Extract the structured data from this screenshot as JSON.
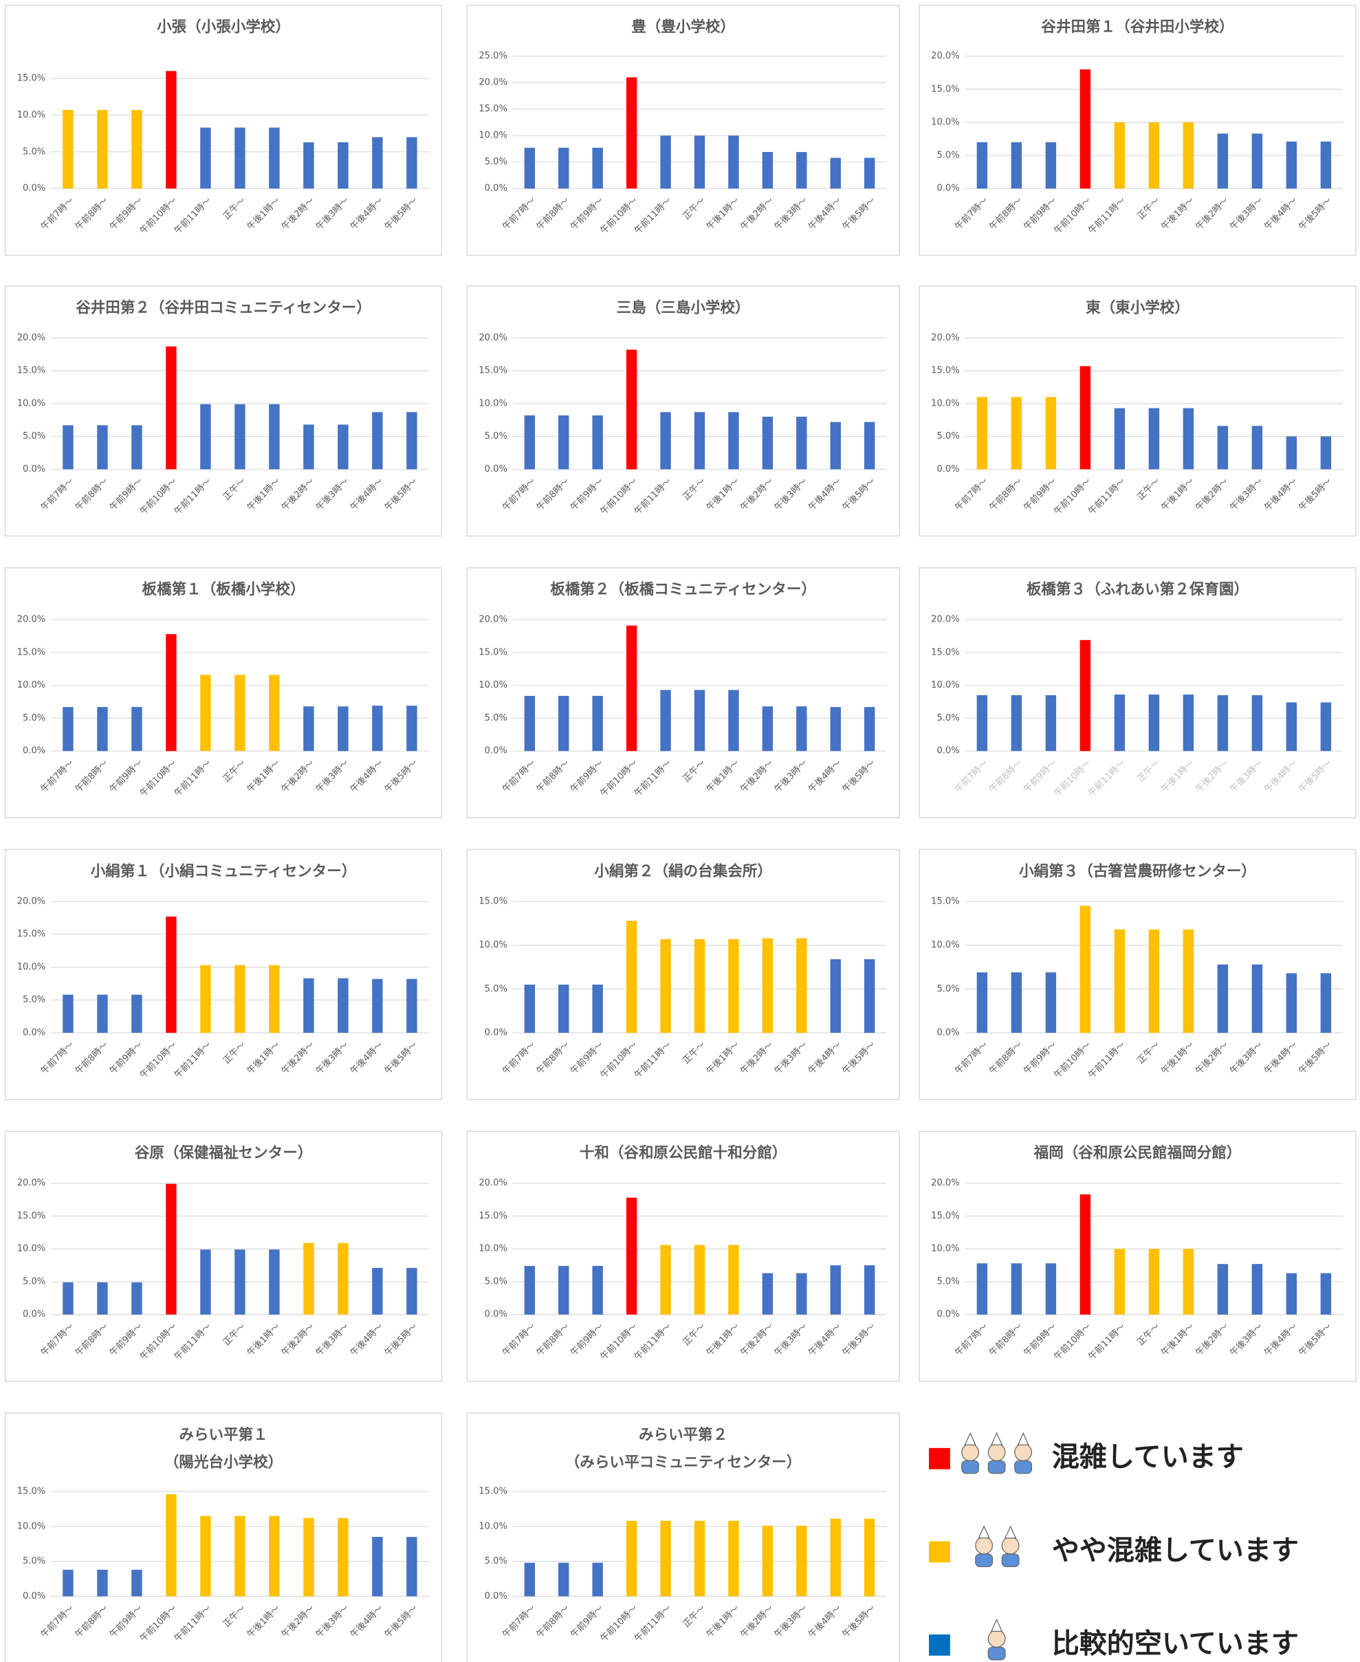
{
  "chart_data": [
    {
      "type": "bar",
      "title": "小張（小張小学校）",
      "categories": [
        "午前7時～",
        "午前8時～",
        "午前9時～",
        "午前10時～",
        "午前11時～",
        "正午～",
        "午後1時～",
        "午後2時～",
        "午後3時～",
        "午後4時～",
        "午後5時～"
      ],
      "values": [
        10.7,
        10.7,
        10.7,
        16.0,
        8.3,
        8.3,
        8.3,
        6.3,
        6.3,
        7.0,
        7.0
      ],
      "colors": [
        "#ffc000",
        "#ffc000",
        "#ffc000",
        "#ff0000",
        "#4472c4",
        "#4472c4",
        "#4472c4",
        "#4472c4",
        "#4472c4",
        "#4472c4",
        "#4472c4"
      ],
      "ylim": [
        0,
        15
      ],
      "yticks": [
        {
          "value": 0,
          "label": "0.0%"
        },
        {
          "value": 5,
          "label": "5.0%"
        },
        {
          "value": 10,
          "label": "10.0%"
        },
        {
          "value": 15,
          "label": "15.0%"
        }
      ],
      "grid": true
    },
    {
      "type": "bar",
      "title": "豊（豊小学校）",
      "categories": [
        "午前7時～",
        "午前8時～",
        "午前9時～",
        "午前10時～",
        "午前11時～",
        "正午～",
        "午後1時～",
        "午後2時～",
        "午後3時～",
        "午後4時～",
        "午後5時～"
      ],
      "values": [
        7.7,
        7.7,
        7.7,
        21.0,
        10.0,
        10.0,
        10.0,
        6.9,
        6.9,
        5.8,
        5.8
      ],
      "colors": [
        "#4472c4",
        "#4472c4",
        "#4472c4",
        "#ff0000",
        "#4472c4",
        "#4472c4",
        "#4472c4",
        "#4472c4",
        "#4472c4",
        "#4472c4",
        "#4472c4"
      ],
      "ylim": [
        0,
        25
      ],
      "yticks": [
        {
          "value": 0,
          "label": "0.0%"
        },
        {
          "value": 5,
          "label": "5.0%"
        },
        {
          "value": 10,
          "label": "10.0%"
        },
        {
          "value": 15,
          "label": "15.0%"
        },
        {
          "value": 20,
          "label": "20.0%"
        },
        {
          "value": 25,
          "label": "25.0%"
        }
      ],
      "grid": true
    },
    {
      "type": "bar",
      "title": "谷井田第１（谷井田小学校）",
      "categories": [
        "午前7時～",
        "午前8時～",
        "午前9時～",
        "午前10時～",
        "午前11時～",
        "正午～",
        "午後1時～",
        "午後2時～",
        "午後3時～",
        "午後4時～",
        "午後5時～"
      ],
      "values": [
        7.0,
        7.0,
        7.0,
        18.0,
        10.0,
        10.0,
        10.0,
        8.3,
        8.3,
        7.1,
        7.1
      ],
      "colors": [
        "#4472c4",
        "#4472c4",
        "#4472c4",
        "#ff0000",
        "#ffc000",
        "#ffc000",
        "#ffc000",
        "#4472c4",
        "#4472c4",
        "#4472c4",
        "#4472c4"
      ],
      "ylim": [
        0,
        20
      ],
      "yticks": [
        {
          "value": 0,
          "label": "0.0%"
        },
        {
          "value": 5,
          "label": "5.0%"
        },
        {
          "value": 10,
          "label": "10.0%"
        },
        {
          "value": 15,
          "label": "15.0%"
        },
        {
          "value": 20,
          "label": "20.0%"
        }
      ],
      "grid": true
    },
    {
      "type": "bar",
      "title": "谷井田第２（谷井田コミュニティセンター）",
      "categories": [
        "午前7時～",
        "午前8時～",
        "午前9時～",
        "午前10時～",
        "午前11時～",
        "正午～",
        "午後1時～",
        "午後2時～",
        "午後3時～",
        "午後4時～",
        "午後5時～"
      ],
      "values": [
        6.7,
        6.7,
        6.7,
        18.7,
        9.9,
        9.9,
        9.9,
        6.8,
        6.8,
        8.7,
        8.7
      ],
      "colors": [
        "#4472c4",
        "#4472c4",
        "#4472c4",
        "#ff0000",
        "#4472c4",
        "#4472c4",
        "#4472c4",
        "#4472c4",
        "#4472c4",
        "#4472c4",
        "#4472c4"
      ],
      "ylim": [
        0,
        20
      ],
      "yticks": [
        {
          "value": 0,
          "label": "0.0%"
        },
        {
          "value": 5,
          "label": "5.0%"
        },
        {
          "value": 10,
          "label": "10.0%"
        },
        {
          "value": 15,
          "label": "15.0%"
        },
        {
          "value": 20,
          "label": "20.0%"
        }
      ],
      "grid": true
    },
    {
      "type": "bar",
      "title": "三島（三島小学校）",
      "categories": [
        "午前7時～",
        "午前8時～",
        "午前9時～",
        "午前10時～",
        "午前11時～",
        "正午～",
        "午後1時～",
        "午後2時～",
        "午後3時～",
        "午後4時～",
        "午後5時～"
      ],
      "values": [
        8.2,
        8.2,
        8.2,
        18.2,
        8.7,
        8.7,
        8.7,
        8.0,
        8.0,
        7.2,
        7.2
      ],
      "colors": [
        "#4472c4",
        "#4472c4",
        "#4472c4",
        "#ff0000",
        "#4472c4",
        "#4472c4",
        "#4472c4",
        "#4472c4",
        "#4472c4",
        "#4472c4",
        "#4472c4"
      ],
      "ylim": [
        0,
        20
      ],
      "yticks": [
        {
          "value": 0,
          "label": "0.0%"
        },
        {
          "value": 5,
          "label": "5.0%"
        },
        {
          "value": 10,
          "label": "10.0%"
        },
        {
          "value": 15,
          "label": "15.0%"
        },
        {
          "value": 20,
          "label": "20.0%"
        }
      ],
      "grid": true
    },
    {
      "type": "bar",
      "title": "東（東小学校）",
      "categories": [
        "午前7時～",
        "午前8時～",
        "午前9時～",
        "午前10時～",
        "午前11時～",
        "正午～",
        "午後1時～",
        "午後2時～",
        "午後3時～",
        "午後4時～",
        "午後5時～"
      ],
      "values": [
        11.0,
        11.0,
        11.0,
        15.7,
        9.3,
        9.3,
        9.3,
        6.6,
        6.6,
        5.0,
        5.0
      ],
      "colors": [
        "#ffc000",
        "#ffc000",
        "#ffc000",
        "#ff0000",
        "#4472c4",
        "#4472c4",
        "#4472c4",
        "#4472c4",
        "#4472c4",
        "#4472c4",
        "#4472c4"
      ],
      "ylim": [
        0,
        20
      ],
      "yticks": [
        {
          "value": 0,
          "label": "0.0%"
        },
        {
          "value": 5,
          "label": "5.0%"
        },
        {
          "value": 10,
          "label": "10.0%"
        },
        {
          "value": 15,
          "label": "15.0%"
        },
        {
          "value": 20,
          "label": "20.0%"
        }
      ],
      "grid": true
    },
    {
      "type": "bar",
      "title": "板橋第１（板橋小学校）",
      "categories": [
        "午前7時～",
        "午前8時～",
        "午前9時～",
        "午前10時～",
        "午前11時～",
        "正午～",
        "午後1時～",
        "午後2時～",
        "午後3時～",
        "午後4時～",
        "午後5時～"
      ],
      "values": [
        6.7,
        6.7,
        6.7,
        17.8,
        11.6,
        11.6,
        11.6,
        6.8,
        6.8,
        6.9,
        6.9
      ],
      "colors": [
        "#4472c4",
        "#4472c4",
        "#4472c4",
        "#ff0000",
        "#ffc000",
        "#ffc000",
        "#ffc000",
        "#4472c4",
        "#4472c4",
        "#4472c4",
        "#4472c4"
      ],
      "ylim": [
        0,
        20
      ],
      "yticks": [
        {
          "value": 0,
          "label": "0.0%"
        },
        {
          "value": 5,
          "label": "5.0%"
        },
        {
          "value": 10,
          "label": "10.0%"
        },
        {
          "value": 15,
          "label": "15.0%"
        },
        {
          "value": 20,
          "label": "20.0%"
        }
      ],
      "grid": true
    },
    {
      "type": "bar",
      "title": "板橋第２（板橋コミュニティセンター）",
      "categories": [
        "午前7時～",
        "午前8時～",
        "午前9時～",
        "午前10時～",
        "午前11時～",
        "正午～",
        "午後1時～",
        "午後2時～",
        "午後3時～",
        "午後4時～",
        "午後5時～"
      ],
      "values": [
        8.4,
        8.4,
        8.4,
        19.1,
        9.3,
        9.3,
        9.3,
        6.8,
        6.8,
        6.7,
        6.7
      ],
      "colors": [
        "#4472c4",
        "#4472c4",
        "#4472c4",
        "#ff0000",
        "#4472c4",
        "#4472c4",
        "#4472c4",
        "#4472c4",
        "#4472c4",
        "#4472c4",
        "#4472c4"
      ],
      "ylim": [
        0,
        20
      ],
      "yticks": [
        {
          "value": 0,
          "label": "0.0%"
        },
        {
          "value": 5,
          "label": "5.0%"
        },
        {
          "value": 10,
          "label": "10.0%"
        },
        {
          "value": 15,
          "label": "15.0%"
        },
        {
          "value": 20,
          "label": "20.0%"
        }
      ],
      "grid": true
    },
    {
      "type": "bar",
      "title": "板橋第３（ふれあい第２保育園）",
      "categories": [
        "午前7時～",
        "午前8時～",
        "午前9時～",
        "午前10時～",
        "午前11時～",
        "正午～",
        "午後1時～",
        "午後2時～",
        "午後3時～",
        "午後4時～",
        "午後5時～"
      ],
      "values": [
        8.5,
        8.5,
        8.5,
        16.9,
        8.6,
        8.6,
        8.6,
        8.5,
        8.5,
        7.4,
        7.4
      ],
      "colors": [
        "#4472c4",
        "#4472c4",
        "#4472c4",
        "#ff0000",
        "#4472c4",
        "#4472c4",
        "#4472c4",
        "#4472c4",
        "#4472c4",
        "#4472c4",
        "#4472c4"
      ],
      "ylim": [
        0,
        20
      ],
      "yticks": [
        {
          "value": 0,
          "label": "0.0%"
        },
        {
          "value": 5,
          "label": "5.0%"
        },
        {
          "value": 10,
          "label": "10.0%"
        },
        {
          "value": 15,
          "label": "15.0%"
        },
        {
          "value": 20,
          "label": "20.0%"
        }
      ],
      "grid": true,
      "xlabel_color": "#bfbfbf"
    },
    {
      "type": "bar",
      "title": "小絹第１（小絹コミュニティセンター）",
      "categories": [
        "午前7時～",
        "午前8時～",
        "午前9時～",
        "午前10時～",
        "午前11時～",
        "正午～",
        "午後1時～",
        "午後2時～",
        "午後3時～",
        "午後4時～",
        "午後5時～"
      ],
      "values": [
        5.8,
        5.8,
        5.8,
        17.7,
        10.3,
        10.3,
        10.3,
        8.3,
        8.3,
        8.2,
        8.2
      ],
      "colors": [
        "#4472c4",
        "#4472c4",
        "#4472c4",
        "#ff0000",
        "#ffc000",
        "#ffc000",
        "#ffc000",
        "#4472c4",
        "#4472c4",
        "#4472c4",
        "#4472c4"
      ],
      "ylim": [
        0,
        20
      ],
      "yticks": [
        {
          "value": 0,
          "label": "0.0%"
        },
        {
          "value": 5,
          "label": "5.0%"
        },
        {
          "value": 10,
          "label": "10.0%"
        },
        {
          "value": 15,
          "label": "15.0%"
        },
        {
          "value": 20,
          "label": "20.0%"
        }
      ],
      "grid": true
    },
    {
      "type": "bar",
      "title": "小絹第２（絹の台集会所）",
      "categories": [
        "午前7時～",
        "午前8時～",
        "午前9時～",
        "午前10時～",
        "午前11時～",
        "正午～",
        "午後1時～",
        "午後2時～",
        "午後3時～",
        "午後4時～",
        "午後5時～"
      ],
      "values": [
        5.5,
        5.5,
        5.5,
        12.8,
        10.7,
        10.7,
        10.7,
        10.8,
        10.8,
        8.4,
        8.4
      ],
      "colors": [
        "#4472c4",
        "#4472c4",
        "#4472c4",
        "#ffc000",
        "#ffc000",
        "#ffc000",
        "#ffc000",
        "#ffc000",
        "#ffc000",
        "#4472c4",
        "#4472c4"
      ],
      "ylim": [
        0,
        15
      ],
      "yticks": [
        {
          "value": 0,
          "label": "0.0%"
        },
        {
          "value": 5,
          "label": "5.0%"
        },
        {
          "value": 10,
          "label": "10.0%"
        },
        {
          "value": 15,
          "label": "15.0%"
        }
      ],
      "grid": true
    },
    {
      "type": "bar",
      "title": "小絹第３（古箸営農研修センター）",
      "categories": [
        "午前7時～",
        "午前8時～",
        "午前9時～",
        "午前10時～",
        "午前11時～",
        "正午～",
        "午後1時～",
        "午後2時～",
        "午後3時～",
        "午後4時～",
        "午後5時～"
      ],
      "values": [
        6.9,
        6.9,
        6.9,
        14.5,
        11.8,
        11.8,
        11.8,
        7.8,
        7.8,
        6.8,
        6.8
      ],
      "colors": [
        "#4472c4",
        "#4472c4",
        "#4472c4",
        "#ffc000",
        "#ffc000",
        "#ffc000",
        "#ffc000",
        "#4472c4",
        "#4472c4",
        "#4472c4",
        "#4472c4"
      ],
      "ylim": [
        0,
        15
      ],
      "yticks": [
        {
          "value": 0,
          "label": "0.0%"
        },
        {
          "value": 5,
          "label": "5.0%"
        },
        {
          "value": 10,
          "label": "10.0%"
        },
        {
          "value": 15,
          "label": "15.0%"
        }
      ],
      "grid": true
    },
    {
      "type": "bar",
      "title": "谷原（保健福祉センター）",
      "categories": [
        "午前7時～",
        "午前8時～",
        "午前9時～",
        "午前10時～",
        "午前11時～",
        "正午～",
        "午後1時～",
        "午後2時～",
        "午後3時～",
        "午後4時～",
        "午後5時～"
      ],
      "values": [
        4.9,
        4.9,
        4.9,
        19.9,
        9.9,
        9.9,
        9.9,
        10.9,
        10.9,
        7.1,
        7.1
      ],
      "colors": [
        "#4472c4",
        "#4472c4",
        "#4472c4",
        "#ff0000",
        "#4472c4",
        "#4472c4",
        "#4472c4",
        "#ffc000",
        "#ffc000",
        "#4472c4",
        "#4472c4"
      ],
      "ylim": [
        0,
        20
      ],
      "yticks": [
        {
          "value": 0,
          "label": "0.0%"
        },
        {
          "value": 5,
          "label": "5.0%"
        },
        {
          "value": 10,
          "label": "10.0%"
        },
        {
          "value": 15,
          "label": "15.0%"
        },
        {
          "value": 20,
          "label": "20.0%"
        }
      ],
      "grid": true
    },
    {
      "type": "bar",
      "title": "十和（谷和原公民館十和分館）",
      "categories": [
        "午前7時～",
        "午前8時～",
        "午前9時～",
        "午前10時～",
        "午前11時～",
        "正午～",
        "午後1時～",
        "午後2時～",
        "午後3時～",
        "午後4時～",
        "午後5時～"
      ],
      "values": [
        7.4,
        7.4,
        7.4,
        17.8,
        10.6,
        10.6,
        10.6,
        6.3,
        6.3,
        7.5,
        7.5
      ],
      "colors": [
        "#4472c4",
        "#4472c4",
        "#4472c4",
        "#ff0000",
        "#ffc000",
        "#ffc000",
        "#ffc000",
        "#4472c4",
        "#4472c4",
        "#4472c4",
        "#4472c4"
      ],
      "ylim": [
        0,
        20
      ],
      "yticks": [
        {
          "value": 0,
          "label": "0.0%"
        },
        {
          "value": 5,
          "label": "5.0%"
        },
        {
          "value": 10,
          "label": "10.0%"
        },
        {
          "value": 15,
          "label": "15.0%"
        },
        {
          "value": 20,
          "label": "20.0%"
        }
      ],
      "grid": true
    },
    {
      "type": "bar",
      "title": "福岡（谷和原公民館福岡分館）",
      "categories": [
        "午前7時～",
        "午前8時～",
        "午前9時～",
        "午前10時～",
        "午前11時～",
        "正午～",
        "午後1時～",
        "午後2時～",
        "午後3時～",
        "午後4時～",
        "午後5時～"
      ],
      "values": [
        7.8,
        7.8,
        7.8,
        18.3,
        10.0,
        10.0,
        10.0,
        7.7,
        7.7,
        6.3,
        6.3
      ],
      "colors": [
        "#4472c4",
        "#4472c4",
        "#4472c4",
        "#ff0000",
        "#ffc000",
        "#ffc000",
        "#ffc000",
        "#4472c4",
        "#4472c4",
        "#4472c4",
        "#4472c4"
      ],
      "ylim": [
        0,
        20
      ],
      "yticks": [
        {
          "value": 0,
          "label": "0.0%"
        },
        {
          "value": 5,
          "label": "5.0%"
        },
        {
          "value": 10,
          "label": "10.0%"
        },
        {
          "value": 15,
          "label": "15.0%"
        },
        {
          "value": 20,
          "label": "20.0%"
        }
      ],
      "grid": true
    },
    {
      "type": "bar",
      "title": "みらい平第１",
      "subtitle": "（陽光台小学校）",
      "categories": [
        "午前7時～",
        "午前8時～",
        "午前9時～",
        "午前10時～",
        "午前11時～",
        "正午～",
        "午後1時～",
        "午後2時～",
        "午後3時～",
        "午後4時～",
        "午後5時～"
      ],
      "values": [
        3.8,
        3.8,
        3.8,
        14.6,
        11.5,
        11.5,
        11.5,
        11.2,
        11.2,
        8.5,
        8.5
      ],
      "colors": [
        "#4472c4",
        "#4472c4",
        "#4472c4",
        "#ffc000",
        "#ffc000",
        "#ffc000",
        "#ffc000",
        "#ffc000",
        "#ffc000",
        "#4472c4",
        "#4472c4"
      ],
      "ylim": [
        0,
        15
      ],
      "yticks": [
        {
          "value": 0,
          "label": "0.0%"
        },
        {
          "value": 5,
          "label": "5.0%"
        },
        {
          "value": 10,
          "label": "10.0%"
        },
        {
          "value": 15,
          "label": "15.0%"
        }
      ],
      "grid": true
    },
    {
      "type": "bar",
      "title": "みらい平第２",
      "subtitle": "（みらい平コミュニティセンター）",
      "categories": [
        "午前7時～",
        "午前8時～",
        "午前9時～",
        "午前10時～",
        "午前11時～",
        "正午～",
        "午後1時～",
        "午後2時～",
        "午後3時～",
        "午後4時～",
        "午後5時～"
      ],
      "values": [
        4.8,
        4.8,
        4.8,
        10.8,
        10.8,
        10.8,
        10.8,
        10.1,
        10.1,
        11.1,
        11.1
      ],
      "colors": [
        "#4472c4",
        "#4472c4",
        "#4472c4",
        "#ffc000",
        "#ffc000",
        "#ffc000",
        "#ffc000",
        "#ffc000",
        "#ffc000",
        "#ffc000",
        "#ffc000"
      ],
      "ylim": [
        0,
        15
      ],
      "yticks": [
        {
          "value": 0,
          "label": "0.0%"
        },
        {
          "value": 5,
          "label": "5.0%"
        },
        {
          "value": 10,
          "label": "10.0%"
        },
        {
          "value": 15,
          "label": "15.0%"
        }
      ],
      "grid": true
    }
  ],
  "legend": [
    {
      "label": "混雑しています",
      "color": "#ff0000"
    },
    {
      "label": "やや混雑しています",
      "color": "#ffc000"
    },
    {
      "label": "比較的空いています",
      "color": "#0070c0"
    }
  ]
}
